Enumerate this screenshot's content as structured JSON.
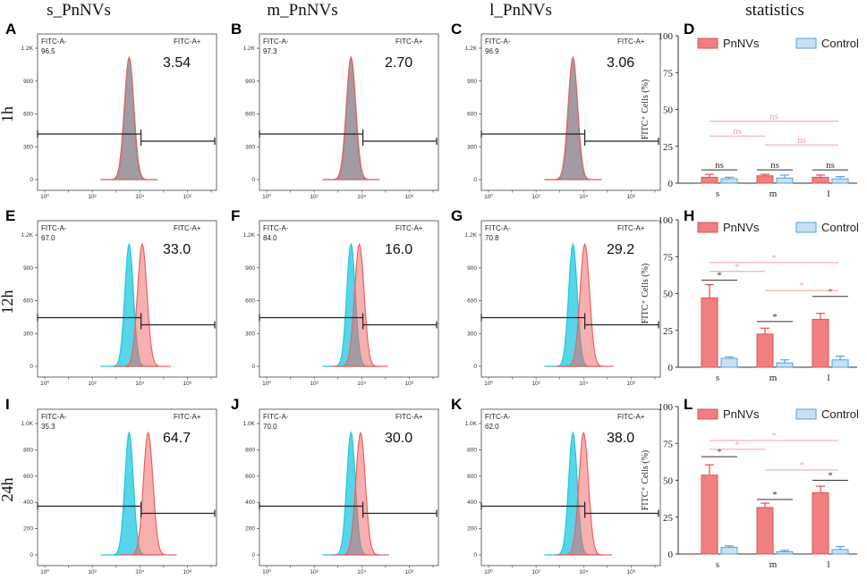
{
  "column_headers": [
    "s_PnNVs",
    "m_PnNVs",
    "l_PnNVs",
    "statistics"
  ],
  "row_labels": [
    "1h",
    "12h",
    "24h"
  ],
  "histogram_ticks": {
    "x": [
      "10⁰",
      "10²",
      "10⁴",
      "10⁶"
    ],
    "y_rows_1_2": [
      "0",
      "300",
      "600",
      "900",
      "1.2K"
    ],
    "y_row_3": [
      "0",
      "200",
      "400",
      "600",
      "800",
      "1.0K"
    ]
  },
  "gate_labels": {
    "neg": "FITC-A-",
    "pos": "FITC-A+"
  },
  "colors": {
    "pnnvs": "#f08080",
    "pnnvs_edge": "#e05050",
    "control": "#c8e0f4",
    "control_edge": "#5aa0d8",
    "hist_control": "#1ec8e0",
    "hist_sample": "#f06060",
    "sig_dark": "#333333",
    "sig_light": "#f3a0a0"
  },
  "histograms": [
    {
      "panel": "A",
      "row": 0,
      "col": 0,
      "neg": "96.5",
      "pos": "3.54",
      "shift": 0.0,
      "ymax": 1200
    },
    {
      "panel": "B",
      "row": 0,
      "col": 1,
      "neg": "97.3",
      "pos": "2.70",
      "shift": 0.0,
      "ymax": 1200
    },
    {
      "panel": "C",
      "row": 0,
      "col": 2,
      "neg": "96.9",
      "pos": "3.06",
      "shift": 0.0,
      "ymax": 1200
    },
    {
      "panel": "E",
      "row": 1,
      "col": 0,
      "neg": "67.0",
      "pos": "33.0",
      "shift": 0.55,
      "ymax": 1200
    },
    {
      "panel": "F",
      "row": 1,
      "col": 1,
      "neg": "84.0",
      "pos": "16.0",
      "shift": 0.35,
      "ymax": 1200
    },
    {
      "panel": "G",
      "row": 1,
      "col": 2,
      "neg": "70.8",
      "pos": "29.2",
      "shift": 0.5,
      "ymax": 1200
    },
    {
      "panel": "I",
      "row": 2,
      "col": 0,
      "neg": "35.3",
      "pos": "64.7",
      "shift": 0.8,
      "ymax": 1000
    },
    {
      "panel": "J",
      "row": 2,
      "col": 1,
      "neg": "70.0",
      "pos": "30.0",
      "shift": 0.4,
      "ymax": 1000
    },
    {
      "panel": "K",
      "row": 2,
      "col": 2,
      "neg": "62.0",
      "pos": "38.0",
      "shift": 0.45,
      "ymax": 1000
    }
  ],
  "chart_data": [
    {
      "panel": "D",
      "type": "bar",
      "time": "1h",
      "ylabel": "FITC⁺ Cells (%)",
      "ylim": [
        0,
        100
      ],
      "yticks": [
        "0",
        "25",
        "50",
        "75",
        "100"
      ],
      "categories": [
        "s",
        "m",
        "l"
      ],
      "series": [
        {
          "name": "PnNVs",
          "values": [
            4,
            5,
            4
          ],
          "errors": [
            2,
            1,
            1.5
          ]
        },
        {
          "name": "Control",
          "values": [
            3,
            3.5,
            3
          ],
          "errors": [
            1,
            2,
            1.5
          ]
        }
      ],
      "significance": [
        {
          "label": "ns",
          "type": "pair",
          "cat": 0,
          "y": 9,
          "style": "dark"
        },
        {
          "label": "ns",
          "type": "pair",
          "cat": 1,
          "y": 9,
          "style": "dark"
        },
        {
          "label": "ns",
          "type": "pair",
          "cat": 2,
          "y": 9,
          "style": "dark"
        },
        {
          "label": "ns",
          "type": "span",
          "from": 0,
          "to": 2,
          "y": 42,
          "style": "light"
        },
        {
          "label": "ns",
          "type": "span",
          "from": 0,
          "to": 1,
          "y": 32,
          "style": "light"
        },
        {
          "label": "ns",
          "type": "span",
          "from": 1,
          "to": 2,
          "y": 26,
          "style": "light"
        }
      ]
    },
    {
      "panel": "H",
      "type": "bar",
      "time": "12h",
      "ylabel": "FITC⁺ Cells (%)",
      "ylim": [
        0,
        100
      ],
      "yticks": [
        "0",
        "25",
        "50",
        "75",
        "100"
      ],
      "categories": [
        "s",
        "m",
        "l"
      ],
      "series": [
        {
          "name": "PnNVs",
          "values": [
            47,
            22.5,
            32.5
          ],
          "errors": [
            9,
            4,
            4
          ]
        },
        {
          "name": "Control",
          "values": [
            6,
            3,
            5
          ],
          "errors": [
            1,
            2,
            2.5
          ]
        }
      ],
      "significance": [
        {
          "label": "*",
          "type": "pair",
          "cat": 0,
          "y": 59,
          "style": "dark"
        },
        {
          "label": "*",
          "type": "pair",
          "cat": 1,
          "y": 31,
          "style": "dark"
        },
        {
          "label": "*",
          "type": "pair",
          "cat": 2,
          "y": 48,
          "style": "dark"
        },
        {
          "label": "*",
          "type": "span",
          "from": 0,
          "to": 2,
          "y": 71,
          "style": "light"
        },
        {
          "label": "*",
          "type": "span",
          "from": 0,
          "to": 1,
          "y": 65,
          "style": "light"
        },
        {
          "label": "*",
          "type": "span",
          "from": 1,
          "to": 2,
          "y": 52,
          "style": "light"
        }
      ]
    },
    {
      "panel": "L",
      "type": "bar",
      "time": "24h",
      "ylabel": "FITC⁺ Cells (%)",
      "ylim": [
        0,
        100
      ],
      "yticks": [
        "0",
        "25",
        "50",
        "75",
        "100"
      ],
      "categories": [
        "s",
        "m",
        "l"
      ],
      "series": [
        {
          "name": "PnNVs",
          "values": [
            53.5,
            31.5,
            41.5
          ],
          "errors": [
            7,
            3,
            4.5
          ]
        },
        {
          "name": "Control",
          "values": [
            4.5,
            1.5,
            3
          ],
          "errors": [
            1,
            1,
            2
          ]
        }
      ],
      "significance": [
        {
          "label": "*",
          "type": "pair",
          "cat": 0,
          "y": 66,
          "style": "dark"
        },
        {
          "label": "*",
          "type": "pair",
          "cat": 1,
          "y": 37,
          "style": "dark"
        },
        {
          "label": "*",
          "type": "pair",
          "cat": 2,
          "y": 50,
          "style": "dark"
        },
        {
          "label": "*",
          "type": "span",
          "from": 0,
          "to": 2,
          "y": 77,
          "style": "light"
        },
        {
          "label": "*",
          "type": "span",
          "from": 0,
          "to": 1,
          "y": 71,
          "style": "light"
        },
        {
          "label": "*",
          "type": "span",
          "from": 1,
          "to": 2,
          "y": 57,
          "style": "light"
        }
      ]
    }
  ],
  "panel_letters": [
    "A",
    "B",
    "C",
    "D",
    "E",
    "F",
    "G",
    "H",
    "I",
    "J",
    "K",
    "L"
  ]
}
